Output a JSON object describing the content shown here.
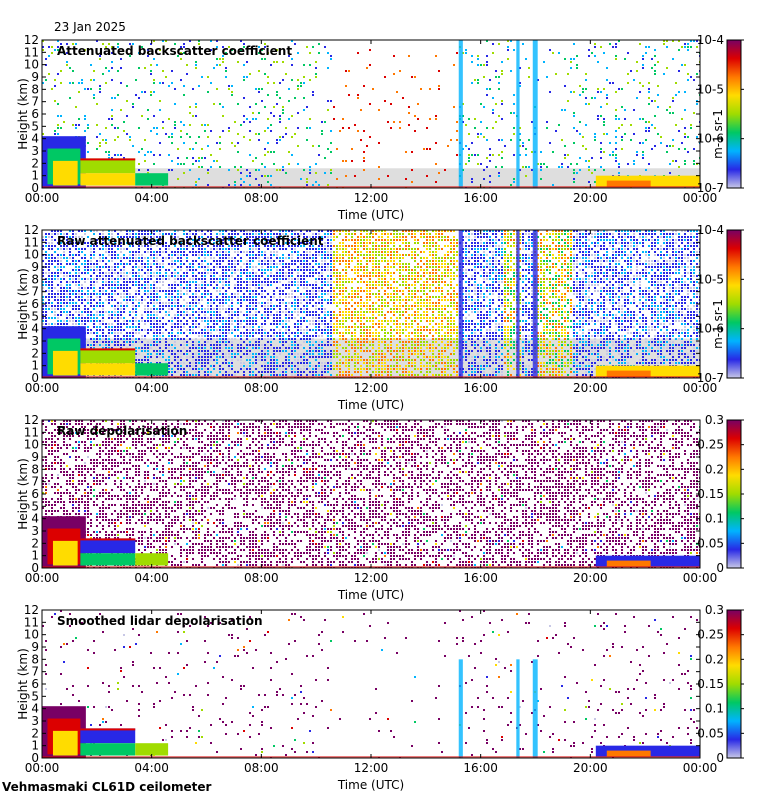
{
  "date": "23 Jan 2025",
  "footer": "Vehmasmaki CL61D ceilometer",
  "colors": {
    "cmap": [
      "#c8c8e6",
      "#2828e6",
      "#00b4ff",
      "#00c864",
      "#a0dc00",
      "#ffdc00",
      "#ff7800",
      "#dc0000",
      "#780064"
    ],
    "no_signal": "#d8d8d8",
    "background": "#ffffff"
  },
  "chart_data": [
    {
      "type": "heatmap",
      "title": "Attenuated backscatter coefficient",
      "xlabel": "Time (UTC)",
      "ylabel": "Height (km)",
      "xlim": [
        0,
        24
      ],
      "ylim": [
        0,
        12
      ],
      "xticks": [
        "00:00",
        "04:00",
        "08:00",
        "12:00",
        "16:00",
        "20:00",
        "00:00"
      ],
      "yticks": [
        "0",
        "1",
        "2",
        "3",
        "4",
        "5",
        "6",
        "7",
        "8",
        "9",
        "10",
        "11",
        "12"
      ],
      "colorbar": {
        "scale": "log",
        "ticks": [
          "10-4",
          "10-5",
          "10-6",
          "10-7"
        ],
        "label": "m-1 sr-1"
      }
    },
    {
      "type": "heatmap",
      "title": "Raw attenuated backscatter coefficient",
      "xlabel": "Time (UTC)",
      "ylabel": "Height (km)",
      "xlim": [
        0,
        24
      ],
      "ylim": [
        0,
        12
      ],
      "xticks": [
        "00:00",
        "04:00",
        "08:00",
        "12:00",
        "16:00",
        "20:00",
        "00:00"
      ],
      "yticks": [
        "0",
        "1",
        "2",
        "3",
        "4",
        "5",
        "6",
        "7",
        "8",
        "9",
        "10",
        "11",
        "12"
      ],
      "colorbar": {
        "scale": "log",
        "ticks": [
          "10-4",
          "10-5",
          "10-6",
          "10-7"
        ],
        "label": "m-1 sr-1"
      }
    },
    {
      "type": "heatmap",
      "title": "Raw depolarisation",
      "xlabel": "Time (UTC)",
      "ylabel": "Height (km)",
      "xlim": [
        0,
        24
      ],
      "ylim": [
        0,
        12
      ],
      "xticks": [
        "00:00",
        "04:00",
        "08:00",
        "12:00",
        "16:00",
        "20:00",
        "00:00"
      ],
      "yticks": [
        "0",
        "1",
        "2",
        "3",
        "4",
        "5",
        "6",
        "7",
        "8",
        "9",
        "10",
        "11",
        "12"
      ],
      "colorbar": {
        "scale": "linear",
        "ticks": [
          "0.3",
          "0.25",
          "0.2",
          "0.15",
          "0.1",
          "0.05",
          "0"
        ],
        "label": ""
      }
    },
    {
      "type": "heatmap",
      "title": "Smoothed lidar depolarisation",
      "xlabel": "Time (UTC)",
      "ylabel": "Height (km)",
      "xlim": [
        0,
        24
      ],
      "ylim": [
        0,
        12
      ],
      "xticks": [
        "00:00",
        "04:00",
        "08:00",
        "12:00",
        "16:00",
        "20:00",
        "00:00"
      ],
      "yticks": [
        "0",
        "1",
        "2",
        "3",
        "4",
        "5",
        "6",
        "7",
        "8",
        "9",
        "10",
        "11",
        "12"
      ],
      "colorbar": {
        "scale": "linear",
        "ticks": [
          "0.3",
          "0.25",
          "0.2",
          "0.15",
          "0.1",
          "0.05",
          "0"
        ],
        "label": ""
      }
    }
  ]
}
